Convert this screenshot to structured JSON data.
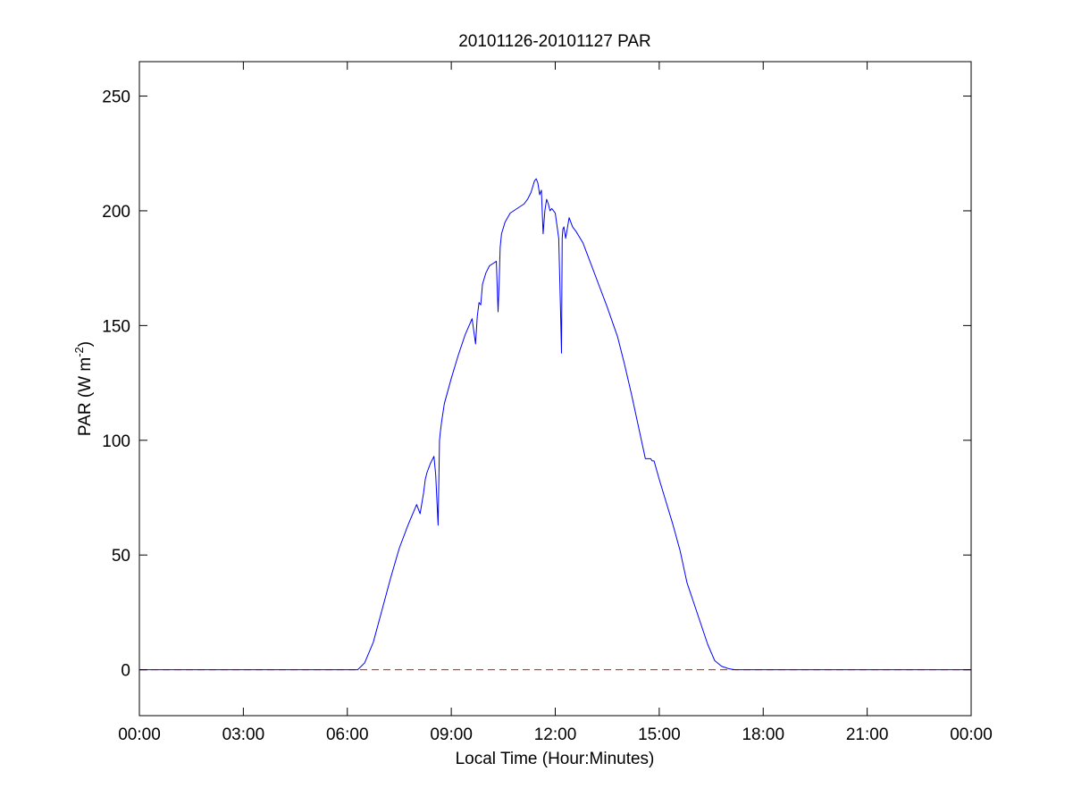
{
  "chart_data": {
    "type": "line",
    "title": "20101126-20101127 PAR",
    "xlabel": "Local Time (Hour:Minutes)",
    "ylabel": {
      "main": "PAR (W m",
      "superscript": "-2",
      "suffix": ")"
    },
    "x_unit": "hours since local midnight",
    "xlim": [
      0,
      24
    ],
    "ylim": [
      -20,
      265
    ],
    "grid": false,
    "x_ticks": [
      {
        "value": 0,
        "label": "00:00"
      },
      {
        "value": 3,
        "label": "03:00"
      },
      {
        "value": 6,
        "label": "06:00"
      },
      {
        "value": 9,
        "label": "09:00"
      },
      {
        "value": 12,
        "label": "12:00"
      },
      {
        "value": 15,
        "label": "15:00"
      },
      {
        "value": 18,
        "label": "18:00"
      },
      {
        "value": 21,
        "label": "21:00"
      },
      {
        "value": 24,
        "label": "00:00"
      }
    ],
    "y_ticks": [
      {
        "value": 0,
        "label": "0"
      },
      {
        "value": 50,
        "label": "50"
      },
      {
        "value": 100,
        "label": "100"
      },
      {
        "value": 150,
        "label": "150"
      },
      {
        "value": 200,
        "label": "200"
      },
      {
        "value": 250,
        "label": "250"
      }
    ],
    "series": [
      {
        "color": "#0000ff",
        "style": "solid",
        "x": [
          0,
          6.3,
          6.4,
          6.5,
          6.75,
          7.0,
          7.25,
          7.5,
          7.75,
          8.0,
          8.1,
          8.2,
          8.25,
          8.3,
          8.4,
          8.5,
          8.55,
          8.62,
          8.66,
          8.68,
          8.72,
          8.8,
          9.0,
          9.2,
          9.4,
          9.6,
          9.7,
          9.75,
          9.8,
          9.85,
          9.9,
          10.0,
          10.1,
          10.2,
          10.3,
          10.35,
          10.38,
          10.41,
          10.45,
          10.55,
          10.7,
          10.9,
          11.1,
          11.2,
          11.3,
          11.4,
          11.45,
          11.5,
          11.55,
          11.6,
          11.65,
          11.7,
          11.75,
          11.8,
          11.85,
          11.9,
          12.0,
          12.1,
          12.15,
          12.18,
          12.2,
          12.22,
          12.25,
          12.3,
          12.4,
          12.5,
          12.6,
          12.8,
          13.0,
          13.2,
          13.5,
          13.8,
          14.0,
          14.2,
          14.4,
          14.6,
          14.75,
          14.8,
          14.85,
          15.0,
          15.2,
          15.4,
          15.6,
          15.8,
          16.0,
          16.2,
          16.4,
          16.6,
          16.8,
          17.0,
          17.1,
          17.2,
          17.3,
          24
        ],
        "y": [
          0,
          0,
          1.5,
          3,
          12,
          26,
          40,
          53,
          63,
          72,
          68,
          77,
          83,
          86,
          90,
          93,
          85,
          63,
          100,
          103,
          108,
          116,
          127,
          137,
          146,
          153,
          142,
          154,
          160,
          159,
          168,
          173,
          176,
          177,
          178,
          156,
          168,
          184,
          190,
          195,
          199,
          201,
          203,
          205,
          208,
          213,
          214,
          212,
          207,
          209,
          190,
          200,
          205,
          203,
          200,
          201,
          199,
          188,
          158,
          138,
          188,
          192,
          193,
          188,
          197,
          193,
          191,
          186,
          178,
          170,
          158,
          145,
          133,
          120,
          106,
          92,
          92,
          91,
          91,
          83,
          73,
          63,
          52,
          38,
          29,
          20,
          11,
          4,
          1.5,
          0.5,
          0.2,
          0,
          0,
          0
        ]
      },
      {
        "color": "#ff0000",
        "style": "dashed",
        "x": [
          0,
          24
        ],
        "y": [
          0,
          0
        ]
      }
    ]
  }
}
